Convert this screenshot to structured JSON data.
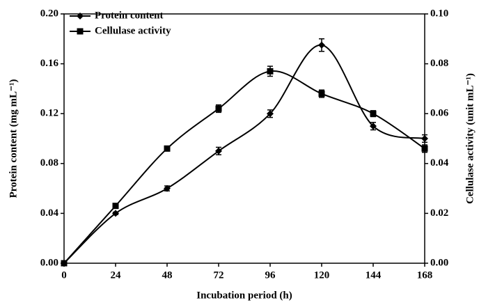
{
  "chart_data": {
    "type": "line",
    "x_label": "Incubation period (h)",
    "y_label": "Protein content (mg mL⁻¹)",
    "y2_label": "Cellulase activity (unit mL⁻¹)",
    "x": [
      0,
      24,
      48,
      72,
      96,
      120,
      144,
      168
    ],
    "xlim": [
      0,
      168
    ],
    "xticks": [
      0,
      24,
      48,
      72,
      96,
      120,
      144,
      168
    ],
    "ylim": [
      0,
      0.2
    ],
    "yticks": [
      {
        "value": 0,
        "label": "0.00"
      },
      0.04,
      0.08,
      0.12,
      0.16,
      {
        "value": 0.2,
        "label": "0.20"
      }
    ],
    "y2lim": [
      0,
      0.1
    ],
    "y2ticks": [
      {
        "value": 0,
        "label": "0.00"
      },
      0.02,
      0.04,
      0.06,
      0.08,
      {
        "value": 0.1,
        "label": "0.10"
      }
    ],
    "legend": "upper left",
    "series": [
      {
        "name": "Protein content",
        "color": "#000000",
        "marker": "diamond",
        "values": [
          0,
          0.04,
          0.06,
          0.09,
          0.12,
          0.175,
          0.11,
          0.1
        ],
        "errors": [
          0,
          0.001,
          0.002,
          0.003,
          0.003,
          0.005,
          0.003,
          0.003
        ]
      },
      {
        "name": "Cellulase activity",
        "color": "#000000",
        "marker": "square",
        "axis": "y2",
        "values": [
          0,
          0.023,
          0.046,
          0.062,
          0.077,
          0.068,
          0.06,
          0.046
        ],
        "errors": [
          0,
          0.0008,
          0.001,
          0.0015,
          0.002,
          0.0015,
          0.0012,
          0.0015
        ]
      }
    ]
  }
}
